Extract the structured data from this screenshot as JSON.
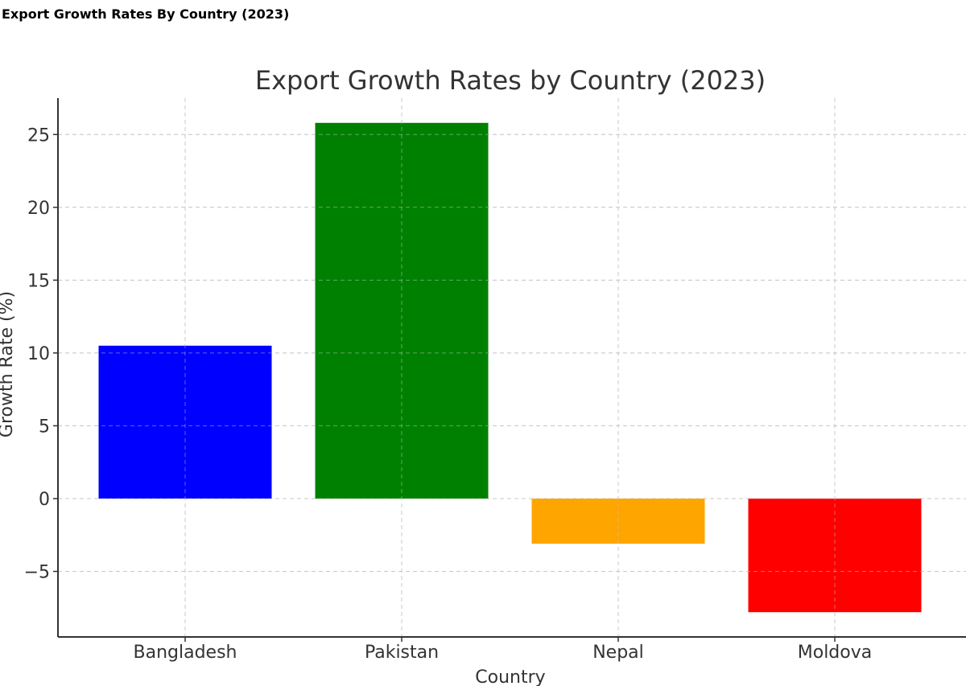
{
  "page": {
    "header": "Export Growth Rates By Country (2023)"
  },
  "chart_data": {
    "type": "bar",
    "title": "Export Growth Rates by Country (2023)",
    "xlabel": "Country",
    "ylabel": "Growth Rate (%)",
    "categories": [
      "Bangladesh",
      "Pakistan",
      "Nepal",
      "Moldova"
    ],
    "values": [
      10.5,
      25.8,
      -3.1,
      -7.8
    ],
    "colors": [
      "#0000ff",
      "#008000",
      "#ffa500",
      "#ff0000"
    ],
    "ylim": [
      -9.5,
      27.5
    ],
    "yticks": [
      -5,
      0,
      5,
      10,
      15,
      20,
      25
    ],
    "ytick_labels": [
      "−5",
      "0",
      "5",
      "10",
      "15",
      "20",
      "25"
    ],
    "grid": true,
    "legend": "none"
  }
}
